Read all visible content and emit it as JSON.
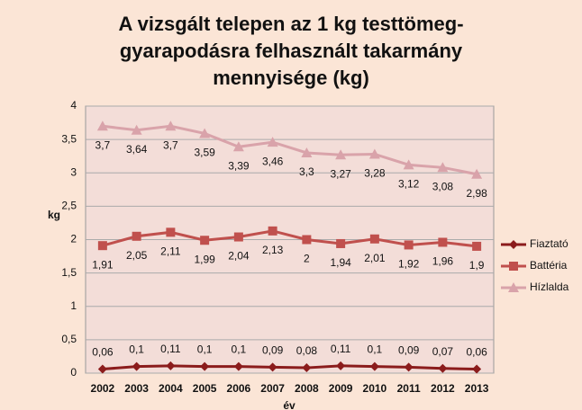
{
  "chart_data": {
    "type": "line",
    "title": "A vizsgált telepen az 1 kg testtömeg-gyarapodásra felhasznált takarmány mennyisége (kg)",
    "y_label": "kg",
    "x_label": "év",
    "categories": [
      "2002",
      "2003",
      "2004",
      "2005",
      "2006",
      "2007",
      "2008",
      "2009",
      "2010",
      "2011",
      "2012",
      "2013"
    ],
    "ylim": [
      0,
      4
    ],
    "yticks": [
      0,
      {
        "value": 0.5,
        "label": "0,5"
      },
      1,
      {
        "value": 1.5,
        "label": "1,5"
      },
      2,
      {
        "value": 2.5,
        "label": "2,5"
      },
      3,
      {
        "value": 3.5,
        "label": "3,5"
      },
      4
    ],
    "grid": true,
    "legend": "right",
    "series": [
      {
        "name": "Fiaztató",
        "color": "#8b1c1c",
        "marker": "diamond",
        "values": [
          0.06,
          0.1,
          0.11,
          0.1,
          0.1,
          0.09,
          0.08,
          0.11,
          0.1,
          0.09,
          0.07,
          0.06
        ],
        "value_labels": [
          "0,06",
          "0,1",
          "0,11",
          "0,1",
          "0,1",
          "0,09",
          "0,08",
          "0,11",
          "0,1",
          "0,09",
          "0,07",
          "0,06"
        ]
      },
      {
        "name": "Battéria",
        "color": "#c0504d",
        "marker": "square",
        "values": [
          1.91,
          2.05,
          2.11,
          1.99,
          2.04,
          2.13,
          2,
          1.94,
          2.01,
          1.92,
          1.96,
          1.9
        ],
        "value_labels": [
          "1,91",
          "2,05",
          "2,11",
          "1,99",
          "2,04",
          "2,13",
          "2",
          "1,94",
          "2,01",
          "1,92",
          "1,96",
          "1,9"
        ]
      },
      {
        "name": "Hízlalda",
        "color": "#d9a3aa",
        "marker": "triangle",
        "values": [
          3.7,
          3.64,
          3.7,
          3.59,
          3.39,
          3.46,
          3.3,
          3.27,
          3.28,
          3.12,
          3.08,
          2.98
        ],
        "value_labels": [
          "3,7",
          "3,64",
          "3,7",
          "3,59",
          "3,39",
          "3,46",
          "3,3",
          "3,27",
          "3,28",
          "3,12",
          "3,08",
          "2,98"
        ]
      }
    ]
  }
}
